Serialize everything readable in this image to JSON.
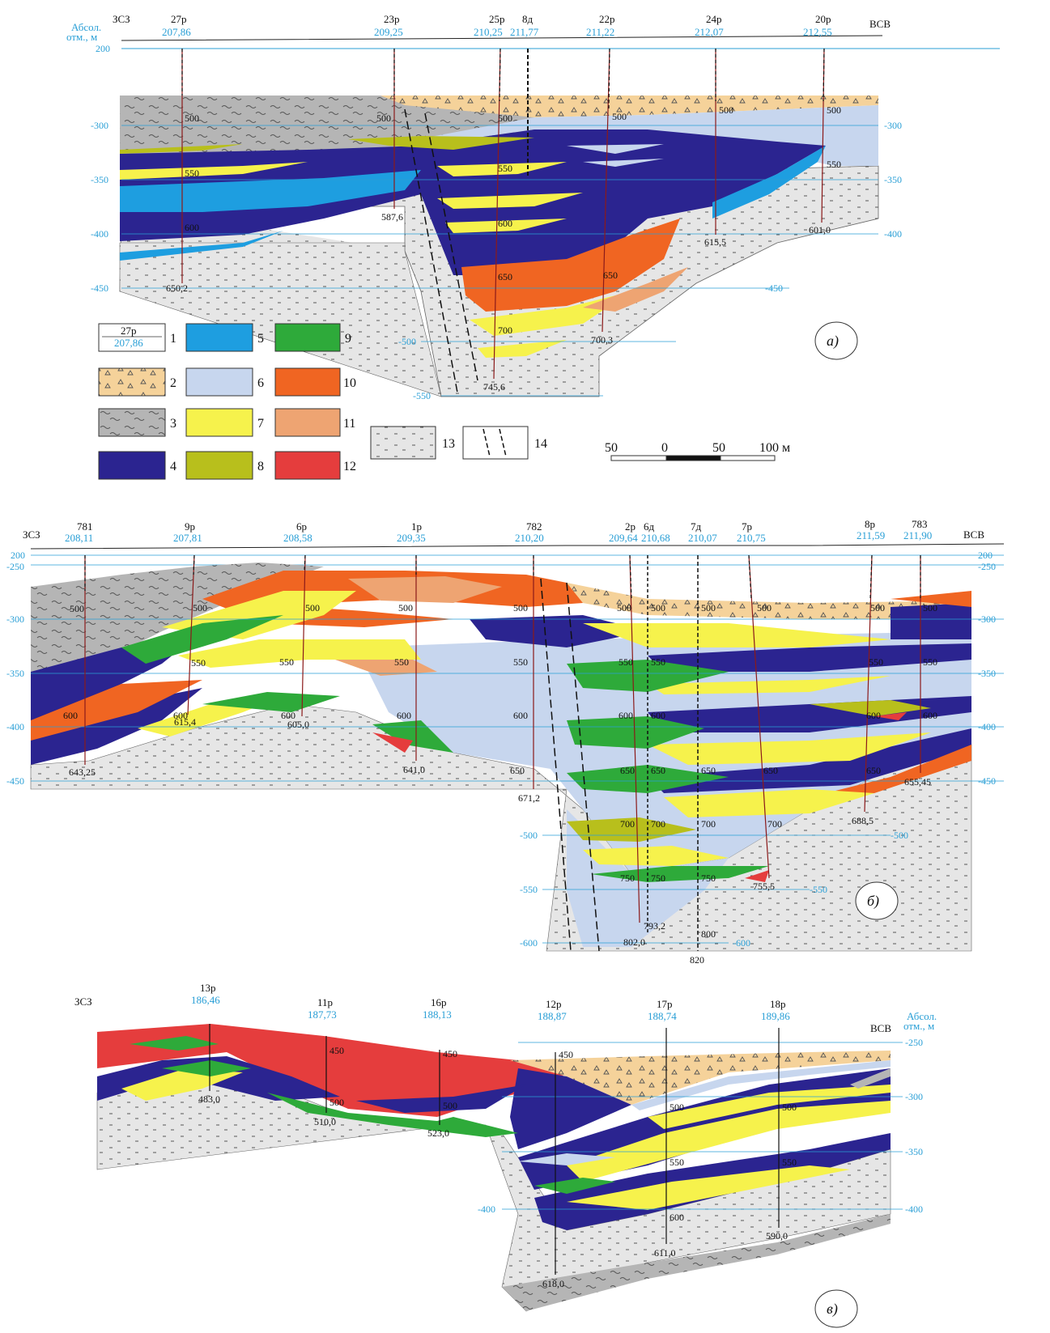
{
  "colors": {
    "c1": "#ffffff",
    "c2": "#f5d29a",
    "c3": "#b5b5b5",
    "c4": "#2b2490",
    "c5": "#1e9ee0",
    "c6": "#c7d6ee",
    "c7": "#f6f24c",
    "c8": "#b8bf1c",
    "c9": "#2eaa3a",
    "c10": "#f06522",
    "c11": "#eea472",
    "c12": "#e53d3d",
    "c13": "#e6e6e6",
    "blue_line": "#2a9fd6",
    "well": "#8b1a1a"
  },
  "panel_a": {
    "label": "а)",
    "dir_left": "ЗСЗ",
    "dir_right": "ВСВ",
    "axis_title_1": "Абсол.",
    "axis_title_2": "отм., м",
    "levels_left": [
      "200",
      "-300",
      "-350",
      "-400",
      "-450"
    ],
    "levels_right": [
      "-300",
      "-350",
      "-400"
    ],
    "levels_mid": [
      "-450",
      "-500",
      "-550"
    ],
    "wells": [
      {
        "name": "27р",
        "elev": "207,86",
        "bottom": "650,2"
      },
      {
        "name": "23р",
        "elev": "209,25",
        "bottom": "587,6"
      },
      {
        "name": "25р",
        "elev": "210,25",
        "bottom": "745,6"
      },
      {
        "name": "8д",
        "elev": "211,77",
        "bottom": ""
      },
      {
        "name": "22р",
        "elev": "211,22",
        "bottom": "700,3"
      },
      {
        "name": "24р",
        "elev": "212,07",
        "bottom": "615,5"
      },
      {
        "name": "20р",
        "elev": "212,55",
        "bottom": "601,0"
      }
    ],
    "depth_marks": [
      "500",
      "550",
      "600",
      "650",
      "700"
    ]
  },
  "legend": {
    "sample_name": "27р",
    "sample_elev": "207,86",
    "items": [
      "1",
      "2",
      "3",
      "4",
      "5",
      "6",
      "7",
      "8",
      "9",
      "10",
      "11",
      "12",
      "13",
      "14"
    ],
    "scale": [
      "50",
      "0",
      "50",
      "100 м"
    ]
  },
  "panel_b": {
    "label": "б)",
    "dir_left": "ЗСЗ",
    "dir_right": "ВСВ",
    "levels_left": [
      "200",
      "-250",
      "-300",
      "-350",
      "-400",
      "-450"
    ],
    "levels_right": [
      "200",
      "-250",
      "-300",
      "-350",
      "-400",
      "-450"
    ],
    "levels_mid": [
      "-500",
      "-550",
      "-600"
    ],
    "wells": [
      {
        "name": "781",
        "elev": "208,11",
        "bottom": "643,25"
      },
      {
        "name": "9р",
        "elev": "207,81",
        "bottom": "615,4"
      },
      {
        "name": "6р",
        "elev": "208,58",
        "bottom": "605,0"
      },
      {
        "name": "1р",
        "elev": "209,35",
        "bottom": "641,0"
      },
      {
        "name": "782",
        "elev": "210,20",
        "bottom": "671,2"
      },
      {
        "name": "2р",
        "elev": "209,64",
        "bottom": "793,2"
      },
      {
        "name": "6д",
        "elev": "210,68",
        "bottom": "802,0"
      },
      {
        "name": "7д",
        "elev": "210,07",
        "bottom": "820"
      },
      {
        "name": "7р",
        "elev": "210,75",
        "bottom": "755,5"
      },
      {
        "name": "8р",
        "elev": "211,59",
        "bottom": "688,5"
      },
      {
        "name": "783",
        "elev": "211,90",
        "bottom": "655,45"
      }
    ],
    "depth_marks": [
      "500",
      "550",
      "600",
      "650",
      "700",
      "750",
      "800"
    ]
  },
  "panel_c": {
    "label": "в)",
    "dir_left": "ЗСЗ",
    "dir_right": "ВСВ",
    "axis_title_1": "Абсол.",
    "axis_title_2": "отм., м",
    "levels_right": [
      "-250",
      "-300",
      "-350",
      "-400"
    ],
    "levels_mid": [
      "-400"
    ],
    "wells": [
      {
        "name": "13р",
        "elev": "186,46",
        "bottom": "483,0"
      },
      {
        "name": "11р",
        "elev": "187,73",
        "bottom": "510,0"
      },
      {
        "name": "16р",
        "elev": "188,13",
        "bottom": "523,0"
      },
      {
        "name": "12р",
        "elev": "188,87",
        "bottom": "618,0"
      },
      {
        "name": "17р",
        "elev": "188,74",
        "bottom": "611,0"
      },
      {
        "name": "18р",
        "elev": "189,86",
        "bottom": "590,0"
      }
    ],
    "depth_marks": [
      "450",
      "500",
      "550",
      "600"
    ]
  }
}
